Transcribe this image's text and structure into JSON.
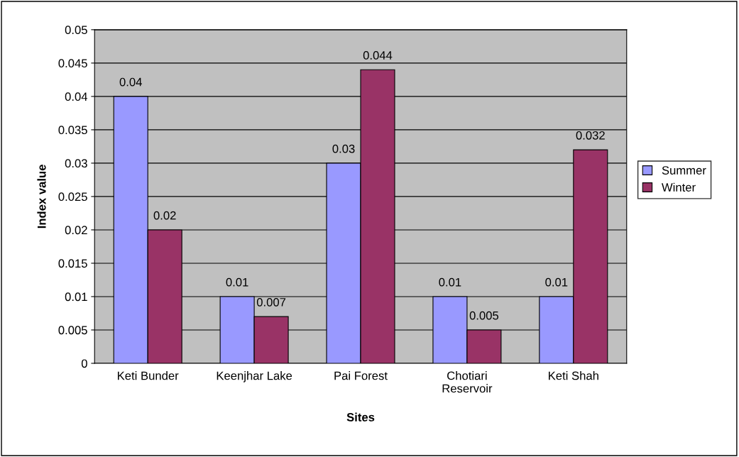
{
  "chart_data": {
    "type": "bar",
    "xlabel": "Sites",
    "ylabel": "Index value",
    "categories": [
      "Keti Bunder",
      "Keenjhar Lake",
      "Pai Forest",
      "Chotiari Reservoir",
      "Keti Shah"
    ],
    "series": [
      {
        "name": "Summer",
        "color": "#9999ff",
        "values": [
          0.04,
          0.01,
          0.03,
          0.01,
          0.01
        ]
      },
      {
        "name": "Winter",
        "color": "#993366",
        "values": [
          0.02,
          0.007,
          0.044,
          0.005,
          0.032
        ]
      }
    ],
    "ylim": [
      0,
      0.05
    ],
    "yticks": [
      0,
      0.005,
      0.01,
      0.015,
      0.02,
      0.025,
      0.03,
      0.035,
      0.04,
      0.045,
      0.05
    ],
    "grid": "y",
    "legend": "right",
    "data_labels": true
  }
}
